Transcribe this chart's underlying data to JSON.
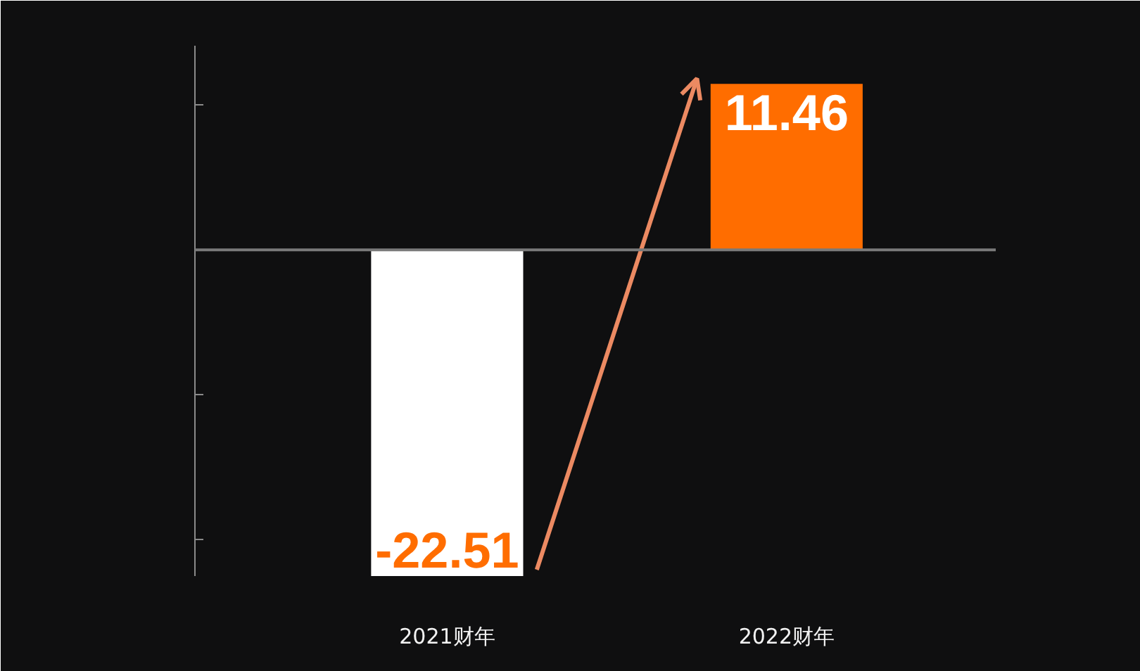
{
  "chart_data": {
    "type": "bar",
    "categories": [
      "2021财年",
      "2022财年"
    ],
    "values": [
      -22.51,
      11.46
    ],
    "colors": [
      "#ffffff",
      "#ff6d00"
    ],
    "data_labels": true,
    "tick_labels": "x",
    "grid": false,
    "ref_lines": [
      {
        "axis": "y",
        "value": 0,
        "color": "#7a7a7a"
      }
    ]
  }
}
